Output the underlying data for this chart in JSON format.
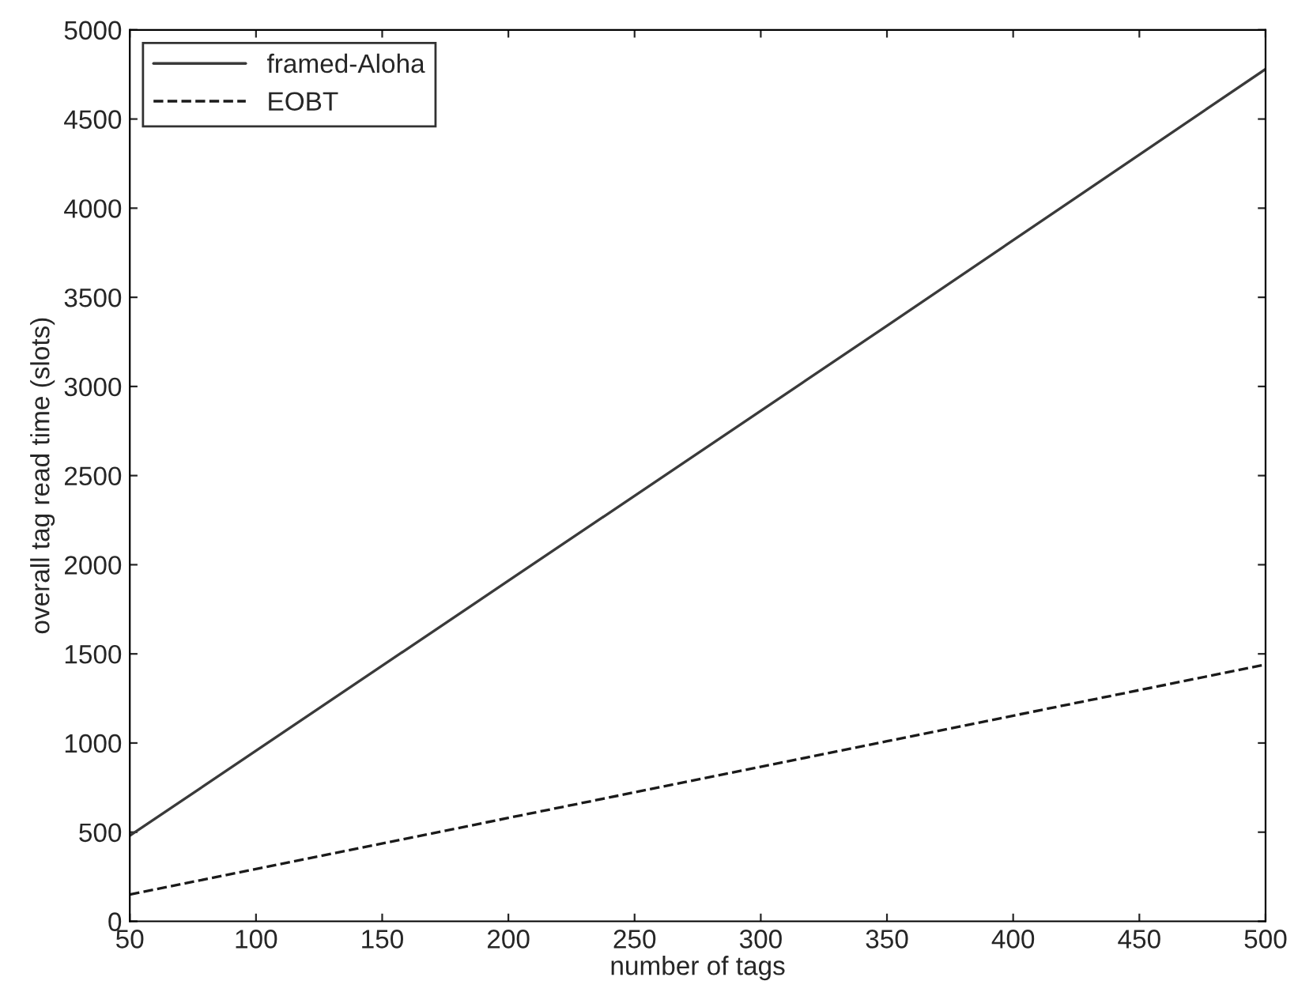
{
  "chart_data": {
    "type": "line",
    "xlabel": "number of tags",
    "ylabel": "overall tag read time (slots)",
    "x": [
      50,
      200,
      350,
      500
    ],
    "series": [
      {
        "name": "framed-Aloha",
        "color": "#3a3a3a",
        "line_style": "solid",
        "values": [
          480,
          1910,
          3340,
          4780
        ]
      },
      {
        "name": "EOBT",
        "color": "#1a1a1a",
        "line_style": "dashed",
        "values": [
          150,
          580,
          1010,
          1440
        ]
      }
    ],
    "xlim": [
      50,
      500
    ],
    "xticks": [
      50,
      100,
      150,
      200,
      250,
      300,
      350,
      400,
      450,
      500
    ],
    "ylim": [
      0,
      5000
    ],
    "yticks": [
      0,
      500,
      1000,
      1500,
      2000,
      2500,
      3000,
      3500,
      4000,
      4500,
      5000
    ],
    "grid": false,
    "legend": "top left"
  }
}
